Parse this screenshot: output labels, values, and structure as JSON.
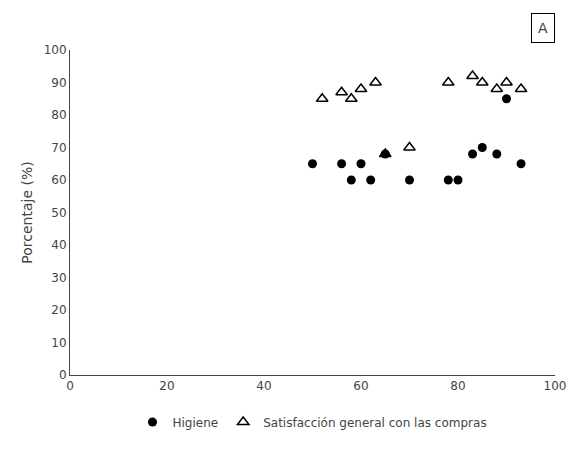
{
  "chart_data": {
    "type": "scatter",
    "y_label": "Porcentaje (%)",
    "annotations": [
      "A"
    ],
    "series": [
      {
        "name": "Higiene",
        "color": "#000000",
        "marker": "circle",
        "x": [
          50,
          56,
          58,
          60,
          62,
          65,
          70,
          78,
          80,
          83,
          85,
          88,
          90,
          93
        ],
        "values": [
          65,
          65,
          60,
          65,
          60,
          68,
          60,
          60,
          60,
          68,
          70,
          68,
          85,
          65
        ]
      },
      {
        "name": "Satisfacción general con las compras",
        "color": "#000000",
        "marker": "triangle_open",
        "x": [
          52,
          56,
          58,
          60,
          63,
          65,
          70,
          78,
          83,
          85,
          88,
          90,
          93
        ],
        "values": [
          85,
          87,
          85,
          88,
          90,
          68,
          70,
          90,
          92,
          90,
          88,
          90,
          88
        ]
      }
    ],
    "xlim": [
      0,
      100
    ],
    "ylim": [
      0,
      100
    ],
    "xticks": [
      0,
      20,
      40,
      60,
      80,
      100
    ],
    "yticks": [
      0,
      10,
      20,
      30,
      40,
      50,
      60,
      70,
      80,
      90,
      100
    ],
    "grid": false,
    "legend": "bottom"
  }
}
